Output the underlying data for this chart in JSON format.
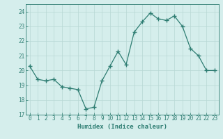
{
  "x": [
    0,
    1,
    2,
    3,
    4,
    5,
    6,
    7,
    8,
    9,
    10,
    11,
    12,
    13,
    14,
    15,
    16,
    17,
    18,
    19,
    20,
    21,
    22,
    23
  ],
  "y": [
    20.3,
    19.4,
    19.3,
    19.4,
    18.9,
    18.8,
    18.7,
    17.4,
    17.5,
    19.3,
    20.3,
    21.3,
    20.4,
    22.6,
    23.3,
    23.9,
    23.5,
    23.4,
    23.7,
    23.0,
    21.5,
    21.0,
    20.0,
    20.0
  ],
  "line_color": "#2e7d72",
  "marker": "+",
  "marker_size": 4,
  "bg_color": "#d5eeec",
  "grid_color": "#b8d8d5",
  "xlabel": "Humidex (Indice chaleur)",
  "xlim": [
    -0.5,
    23.5
  ],
  "ylim": [
    17,
    24.5
  ],
  "yticks": [
    17,
    18,
    19,
    20,
    21,
    22,
    23,
    24
  ],
  "xtick_labels": [
    "0",
    "1",
    "2",
    "3",
    "4",
    "5",
    "6",
    "7",
    "8",
    "9",
    "10",
    "11",
    "12",
    "13",
    "14",
    "15",
    "16",
    "17",
    "18",
    "19",
    "20",
    "21",
    "22",
    "23"
  ],
  "tick_color": "#2e7d72",
  "label_fontsize": 6.5,
  "tick_fontsize": 5.5,
  "linewidth": 0.9,
  "spine_color": "#2e7d72"
}
